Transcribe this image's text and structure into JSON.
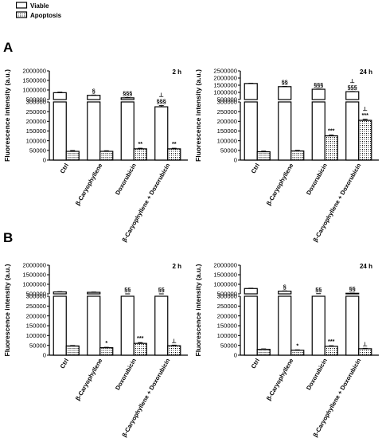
{
  "legend": [
    {
      "label": "Viable",
      "fill": "#ffffff"
    },
    {
      "label": "Apoptosis",
      "fill": "dots"
    }
  ],
  "panels": [
    "A",
    "B"
  ],
  "chart_data": [
    {
      "type": "bar",
      "panel": "A",
      "time": "2 h",
      "ylabel": "Fluorescence intensity (a.u.)",
      "categories": [
        "Ctrl",
        "β-Caryophyllene",
        "Doxorubicin",
        "β-Caryophyllene + Doxorubicin"
      ],
      "series": [
        {
          "name": "Viable",
          "values": [
            860000,
            720000,
            590000,
            275000
          ],
          "errors": [
            25000,
            15000,
            18000,
            6000
          ]
        },
        {
          "name": "Apoptosis",
          "values": [
            45000,
            45000,
            58000,
            58000
          ],
          "errors": [
            4000,
            3000,
            3000,
            3000
          ]
        }
      ],
      "annotations_viable": [
        "",
        "§",
        "§§§",
        "⊥\n§§§"
      ],
      "annotations_apoptosis": [
        "",
        "",
        "**",
        "**"
      ],
      "axis": {
        "lower_max": 300000,
        "lower_ticks": [
          0,
          50000,
          100000,
          150000,
          200000,
          250000,
          300000
        ],
        "upper_ticks": [
          500000,
          1000000,
          1500000,
          2000000
        ],
        "break_at": 300000,
        "log_scale": false
      }
    },
    {
      "type": "bar",
      "panel": "A",
      "time": "24 h",
      "ylabel": "Fluorescence intensity (a.u.)",
      "categories": [
        "Ctrl",
        "β-Caryophyllene",
        "Doxorubicin",
        "β-Caryophyllene + Doxorubicin"
      ],
      "series": [
        {
          "name": "Viable",
          "values": [
            1620000,
            1400000,
            1220000,
            1050000
          ],
          "errors": [
            20000,
            15000,
            15000,
            15000
          ]
        },
        {
          "name": "Apoptosis",
          "values": [
            43000,
            47000,
            125000,
            205000
          ],
          "errors": [
            3000,
            3000,
            4000,
            5000
          ]
        }
      ],
      "annotations_viable": [
        "",
        "§§",
        "§§§",
        "⊥\n§§§"
      ],
      "annotations_apoptosis": [
        "",
        "",
        "***",
        "⊥\n***"
      ],
      "axis": {
        "lower_max": 300000,
        "lower_ticks": [
          0,
          50000,
          100000,
          150000,
          200000,
          250000,
          300000
        ],
        "upper_ticks": [
          500000,
          1000000,
          1500000,
          2000000,
          2500000
        ],
        "break_at": 300000,
        "log_scale": false
      }
    },
    {
      "type": "bar",
      "panel": "B",
      "time": "2 h",
      "ylabel": "Fluorescence intensity (a.u.)",
      "categories": [
        "Ctrl",
        "β-Caryophyllene",
        "Doxorubicin",
        "β-Caryophyllene + Doxorubicin"
      ],
      "series": [
        {
          "name": "Viable",
          "values": [
            600000,
            580000,
            350000,
            420000
          ],
          "errors": [
            15000,
            15000,
            10000,
            10000
          ]
        },
        {
          "name": "Apoptosis",
          "values": [
            47000,
            38000,
            60000,
            48000
          ],
          "errors": [
            2000,
            2000,
            4000,
            3000
          ]
        }
      ],
      "annotations_viable": [
        "",
        "",
        "§§",
        "§§"
      ],
      "annotations_apoptosis": [
        "",
        "*",
        "***",
        "⊥"
      ],
      "axis": {
        "lower_max": 300000,
        "lower_ticks": [
          0,
          50000,
          100000,
          150000,
          200000,
          250000,
          300000
        ],
        "upper_ticks": [
          500000,
          1000000,
          1500000,
          2000000
        ],
        "break_at": 300000,
        "log_scale": false
      }
    },
    {
      "type": "bar",
      "panel": "B",
      "time": "24 h",
      "ylabel": "Fluorescence intensity (a.u.)",
      "categories": [
        "Ctrl",
        "β-Caryophyllene",
        "Doxorubicin",
        "β-Caryophyllene + Doxorubicin"
      ],
      "series": [
        {
          "name": "Viable",
          "values": [
            780000,
            640000,
            500000,
            530000
          ],
          "errors": [
            15000,
            15000,
            10000,
            10000
          ]
        },
        {
          "name": "Apoptosis",
          "values": [
            30000,
            25000,
            45000,
            33000
          ],
          "errors": [
            2000,
            2000,
            3000,
            2000
          ]
        }
      ],
      "annotations_viable": [
        "",
        "§",
        "§§",
        "§§"
      ],
      "annotations_apoptosis": [
        "",
        "*",
        "***",
        "⊥"
      ],
      "axis": {
        "lower_max": 300000,
        "lower_ticks": [
          0,
          50000,
          100000,
          150000,
          200000,
          250000,
          300000
        ],
        "upper_ticks": [
          500000,
          1000000,
          1500000,
          2000000
        ],
        "break_at": 300000,
        "log_scale": false
      }
    }
  ]
}
